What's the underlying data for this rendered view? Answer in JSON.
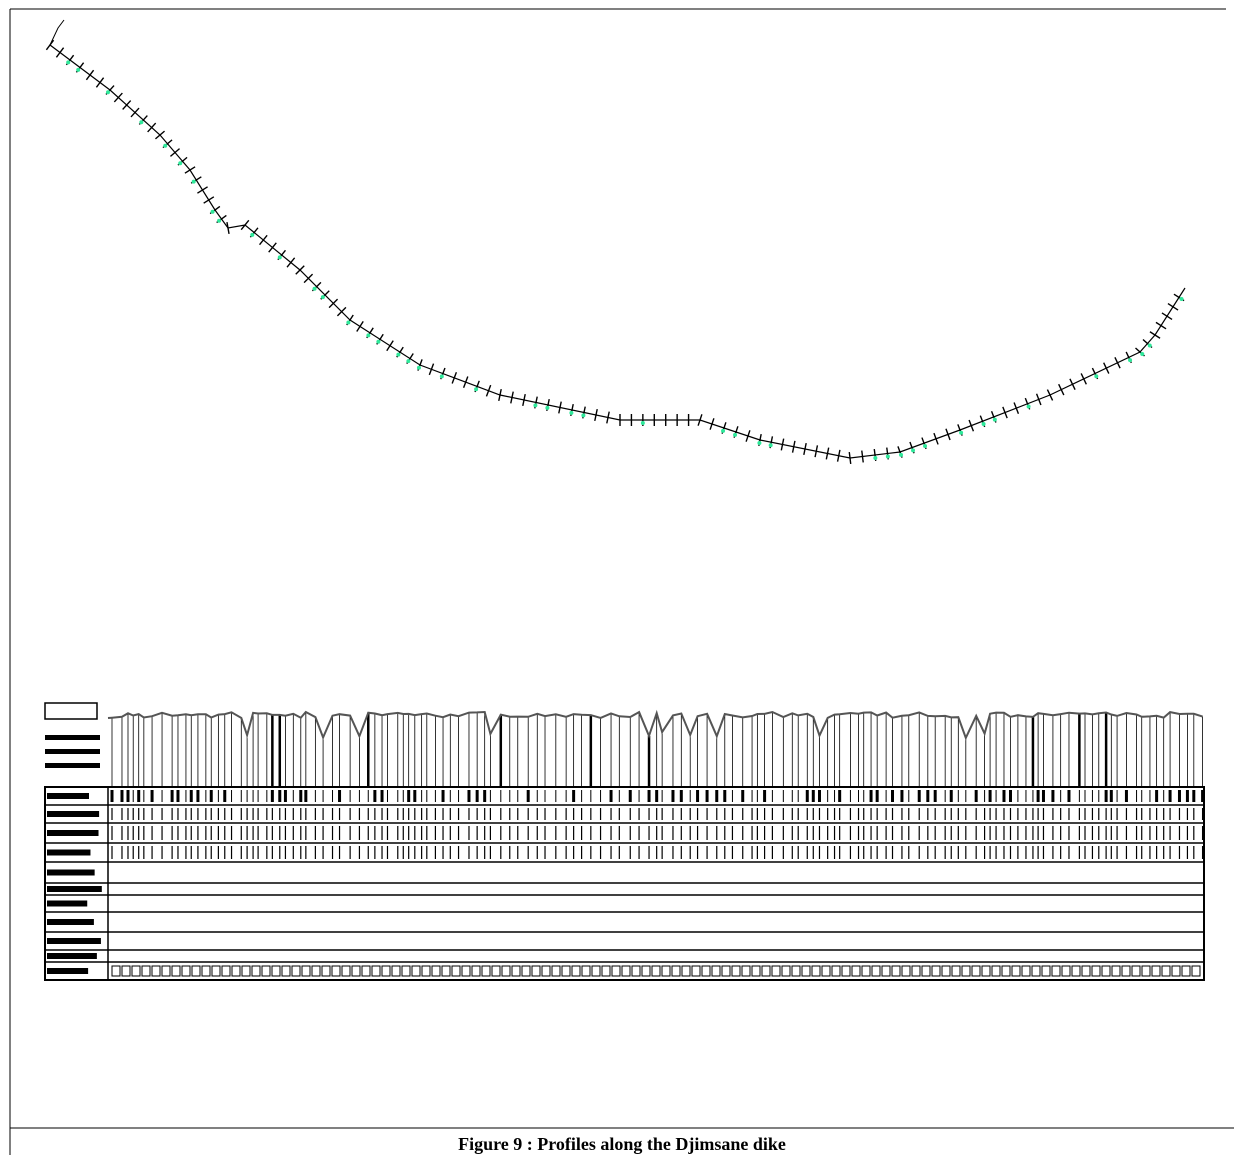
{
  "figure": {
    "caption": "Figure 9 : Profiles along the Djimsane dike"
  }
}
